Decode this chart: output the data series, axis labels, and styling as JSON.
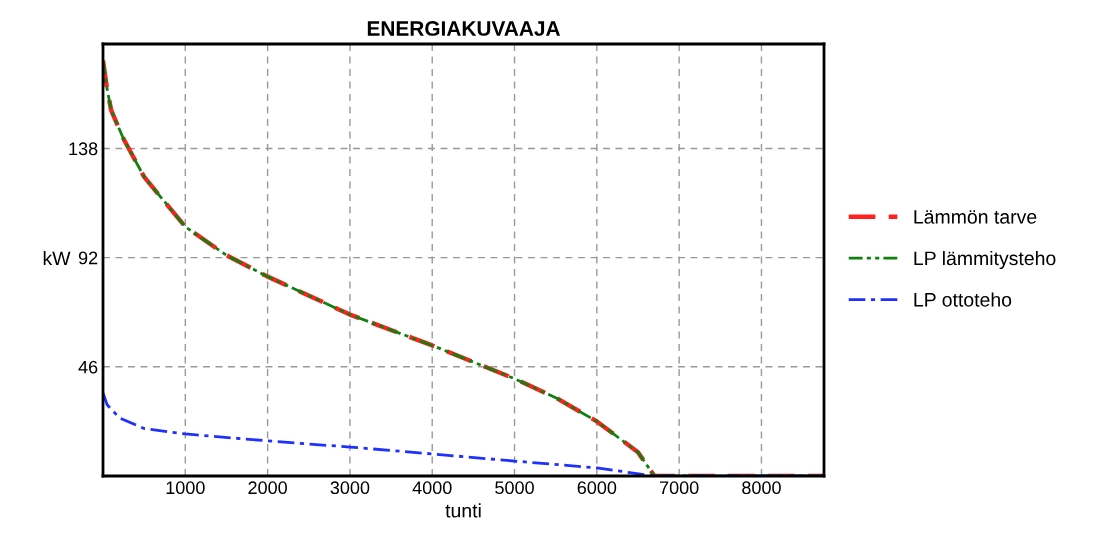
{
  "chart_data": {
    "type": "line",
    "title": "ENERGIAKUVAAJA",
    "xlabel": "tunti",
    "ylabel": "kW",
    "xlim": [
      0,
      8760
    ],
    "ylim": [
      0,
      182
    ],
    "xticks": [
      1000,
      2000,
      3000,
      4000,
      5000,
      6000,
      7000,
      8000
    ],
    "yticks": [
      46,
      92,
      138
    ],
    "grid": true,
    "legend": "right",
    "series": [
      {
        "name": "Lämmön tarve",
        "color": "#ff2020",
        "line_style": "dashed",
        "x": [
          0,
          50,
          100,
          250,
          500,
          1000,
          1500,
          2000,
          3000,
          4000,
          4500,
          5000,
          5500,
          6000,
          6500,
          6700,
          8760
        ],
        "values": [
          175,
          163,
          154,
          142,
          126,
          105,
          93,
          84,
          68,
          55,
          48,
          41,
          33,
          23,
          10,
          0,
          0
        ]
      },
      {
        "name": "LP lämmitysteho",
        "color": "#108010",
        "line_style": "dashdotdot",
        "x": [
          0,
          50,
          100,
          250,
          500,
          1000,
          1500,
          2000,
          3000,
          4000,
          4500,
          5000,
          5500,
          6000,
          6500,
          6700,
          8760
        ],
        "values": [
          175,
          163,
          154,
          142,
          126,
          105,
          93,
          84,
          68,
          55,
          48,
          41,
          33,
          23,
          10,
          0,
          0
        ]
      },
      {
        "name": "LP ottoteho",
        "color": "#2030ff",
        "line_style": "dashdot",
        "x": [
          0,
          50,
          200,
          500,
          1000,
          2000,
          3000,
          4000,
          5000,
          6000,
          6700,
          8760
        ],
        "values": [
          35,
          30,
          24.5,
          20,
          17.7,
          14.8,
          12.2,
          9.3,
          6.3,
          3.4,
          0,
          0
        ]
      }
    ]
  }
}
